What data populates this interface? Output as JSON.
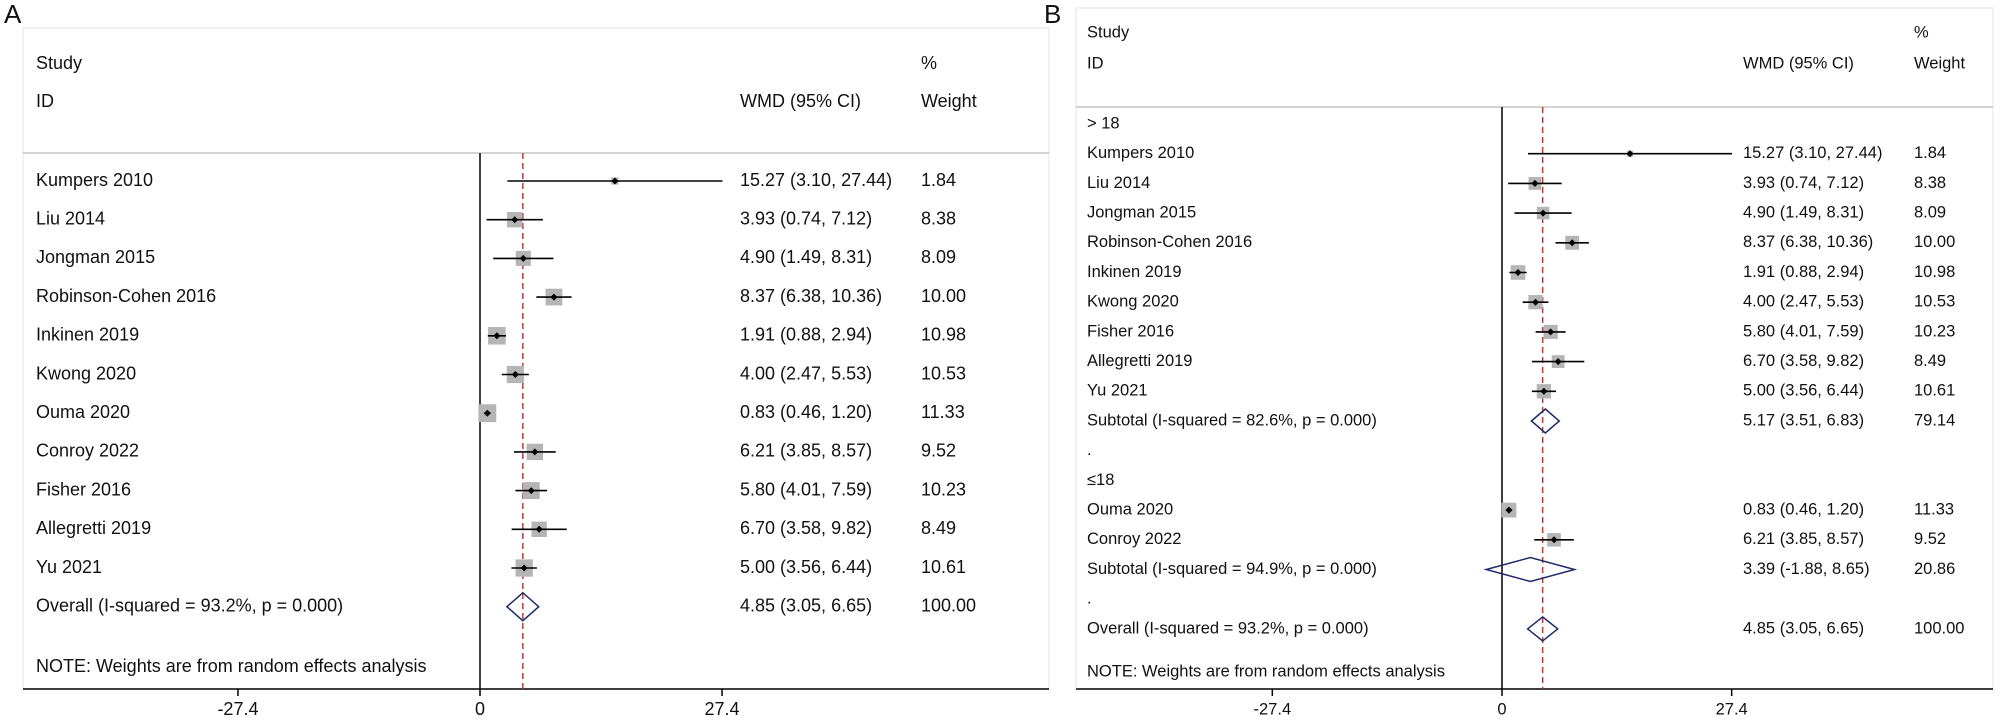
{
  "chart_data": [
    {
      "type": "forest",
      "panel": "A",
      "header": {
        "study": "Study",
        "id": "ID",
        "effect": "WMD (95% CI)",
        "pct": "%",
        "weight": "Weight"
      },
      "xlim": [
        -27.44,
        27.44
      ],
      "xticks": [
        -27.4,
        0,
        27.4
      ],
      "rows": [
        {
          "label": "Kumpers 2010",
          "value": 15.27,
          "lower": 3.1,
          "upper": 27.44,
          "ci_label": "15.27 (3.10, 27.44)",
          "weight": 1.84
        },
        {
          "label": "Liu 2014",
          "value": 3.93,
          "lower": 0.74,
          "upper": 7.12,
          "ci_label": "3.93 (0.74, 7.12)",
          "weight": 8.38
        },
        {
          "label": "Jongman 2015",
          "value": 4.9,
          "lower": 1.49,
          "upper": 8.31,
          "ci_label": "4.90 (1.49, 8.31)",
          "weight": 8.09
        },
        {
          "label": "Robinson-Cohen 2016",
          "value": 8.37,
          "lower": 6.38,
          "upper": 10.36,
          "ci_label": "8.37 (6.38, 10.36)",
          "weight": 10.0,
          "weight_label": "10.00"
        },
        {
          "label": "Inkinen 2019",
          "value": 1.91,
          "lower": 0.88,
          "upper": 2.94,
          "ci_label": "1.91 (0.88, 2.94)",
          "weight": 10.98
        },
        {
          "label": "Kwong 2020",
          "value": 4.0,
          "lower": 2.47,
          "upper": 5.53,
          "ci_label": "4.00 (2.47, 5.53)",
          "weight": 10.53
        },
        {
          "label": "Ouma 2020",
          "value": 0.83,
          "lower": 0.46,
          "upper": 1.2,
          "ci_label": "0.83 (0.46, 1.20)",
          "weight": 11.33
        },
        {
          "label": "Conroy 2022",
          "value": 6.21,
          "lower": 3.85,
          "upper": 8.57,
          "ci_label": "6.21 (3.85, 8.57)",
          "weight": 9.52
        },
        {
          "label": "Fisher 2016",
          "value": 5.8,
          "lower": 4.01,
          "upper": 7.59,
          "ci_label": "5.80 (4.01, 7.59)",
          "weight": 10.23
        },
        {
          "label": "Allegretti 2019",
          "value": 6.7,
          "lower": 3.58,
          "upper": 9.82,
          "ci_label": "6.70 (3.58, 9.82)",
          "weight": 8.49
        },
        {
          "label": "Yu 2021",
          "value": 5.0,
          "lower": 3.56,
          "upper": 6.44,
          "ci_label": "5.00 (3.56, 6.44)",
          "weight": 10.61
        },
        {
          "label": "Overall  (I-squared = 93.2%, p = 0.000)",
          "value": 4.85,
          "lower": 3.05,
          "upper": 6.65,
          "ci_label": "4.85 (3.05, 6.65)",
          "weight": 100.0,
          "weight_label": "100.00",
          "summary": true
        }
      ],
      "note": "NOTE: Weights are from random effects analysis"
    },
    {
      "type": "forest",
      "panel": "B",
      "header": {
        "study": "Study",
        "id": "ID",
        "effect": "WMD (95% CI)",
        "pct": "%",
        "weight": "Weight"
      },
      "xlim": [
        -27.44,
        27.44
      ],
      "xticks": [
        -27.4,
        0,
        27.4
      ],
      "rows": [
        {
          "label": "> 18"
        },
        {
          "label": "Kumpers 2010",
          "value": 15.27,
          "lower": 3.1,
          "upper": 27.44,
          "ci_label": "15.27 (3.10, 27.44)",
          "weight": 1.84
        },
        {
          "label": "Liu 2014",
          "value": 3.93,
          "lower": 0.74,
          "upper": 7.12,
          "ci_label": "3.93 (0.74, 7.12)",
          "weight": 8.38
        },
        {
          "label": "Jongman 2015",
          "value": 4.9,
          "lower": 1.49,
          "upper": 8.31,
          "ci_label": "4.90 (1.49, 8.31)",
          "weight": 8.09
        },
        {
          "label": "Robinson-Cohen 2016",
          "value": 8.37,
          "lower": 6.38,
          "upper": 10.36,
          "ci_label": "8.37 (6.38, 10.36)",
          "weight": 10.0,
          "weight_label": "10.00"
        },
        {
          "label": "Inkinen 2019",
          "value": 1.91,
          "lower": 0.88,
          "upper": 2.94,
          "ci_label": "1.91 (0.88, 2.94)",
          "weight": 10.98
        },
        {
          "label": "Kwong 2020",
          "value": 4.0,
          "lower": 2.47,
          "upper": 5.53,
          "ci_label": "4.00 (2.47, 5.53)",
          "weight": 10.53
        },
        {
          "label": "Fisher 2016",
          "value": 5.8,
          "lower": 4.01,
          "upper": 7.59,
          "ci_label": "5.80 (4.01, 7.59)",
          "weight": 10.23
        },
        {
          "label": "Allegretti 2019",
          "value": 6.7,
          "lower": 3.58,
          "upper": 9.82,
          "ci_label": "6.70 (3.58, 9.82)",
          "weight": 8.49
        },
        {
          "label": "Yu 2021",
          "value": 5.0,
          "lower": 3.56,
          "upper": 6.44,
          "ci_label": "5.00 (3.56, 6.44)",
          "weight": 10.61
        },
        {
          "label": "Subtotal  (I-squared = 82.6%, p = 0.000)",
          "value": 5.17,
          "lower": 3.51,
          "upper": 6.83,
          "ci_label": "5.17 (3.51, 6.83)",
          "weight": 79.14,
          "summary": true
        },
        {
          "label": "."
        },
        {
          "label": "≤18"
        },
        {
          "label": "Ouma 2020",
          "value": 0.83,
          "lower": 0.46,
          "upper": 1.2,
          "ci_label": "0.83 (0.46, 1.20)",
          "weight": 11.33
        },
        {
          "label": "Conroy 2022",
          "value": 6.21,
          "lower": 3.85,
          "upper": 8.57,
          "ci_label": "6.21 (3.85, 8.57)",
          "weight": 9.52
        },
        {
          "label": "Subtotal  (I-squared = 94.9%, p = 0.000)",
          "value": 3.39,
          "lower": -1.88,
          "upper": 8.65,
          "ci_label": "3.39 (-1.88, 8.65)",
          "weight": 20.86,
          "summary": true
        },
        {
          "label": "."
        },
        {
          "label": "Overall  (I-squared = 93.2%, p = 0.000)",
          "value": 4.85,
          "lower": 3.05,
          "upper": 6.65,
          "ci_label": "4.85 (3.05, 6.65)",
          "weight": 100.0,
          "weight_label": "100.00",
          "summary": true
        }
      ],
      "note": "NOTE: Weights are from random effects analysis"
    }
  ]
}
